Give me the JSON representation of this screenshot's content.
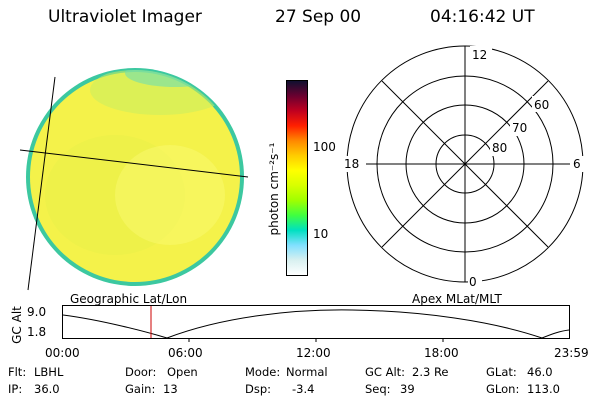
{
  "header": {
    "title": "Ultraviolet Imager",
    "date": "27 Sep 00",
    "time": "04:16:42 UT"
  },
  "colorbar": {
    "unit_label": "photon cm⁻²s⁻¹",
    "ticks": [
      "100",
      "10"
    ],
    "colors": [
      "#101030",
      "#6a0030",
      "#c00020",
      "#ff2000",
      "#ff8800",
      "#ffcc00",
      "#ffff00",
      "#d8ff00",
      "#a0ff00",
      "#40ff40",
      "#00e0c0",
      "#80e0ff",
      "#d8f0f0",
      "#ffffff"
    ]
  },
  "image": {
    "fill_color": "#f4f24a",
    "edge_color": "#3cc8a0"
  },
  "polar_grid": {
    "mlt_labels": [
      "12",
      "18",
      "6",
      "0"
    ],
    "lat_labels": [
      "60",
      "70",
      "80"
    ]
  },
  "panel_labels": {
    "left": "Geographic Lat/Lon",
    "right": "Apex MLat/MLT"
  },
  "altitude_plot": {
    "axis_label": "GC Alt",
    "y_ticks": [
      "9.0",
      "1.8"
    ],
    "x_ticks": [
      "00:00",
      "06:00",
      "12:00",
      "18:00",
      "23:59"
    ],
    "marker_color": "#cc0000"
  },
  "info": {
    "rows": [
      [
        {
          "label": "Flt:",
          "value": "LBHL"
        },
        {
          "label": "Door:",
          "value": "Open"
        },
        {
          "label": "Mode:",
          "value": "Normal"
        },
        {
          "label": "GC Alt:",
          "value": "2.3 Re"
        },
        {
          "label": "GLat:",
          "value": "46.0"
        }
      ],
      [
        {
          "label": "IP:",
          "value": "36.0"
        },
        {
          "label": "Gain:",
          "value": "13"
        },
        {
          "label": "Dsp:",
          "value": "-3.4"
        },
        {
          "label": "Seq:",
          "value": "39"
        },
        {
          "label": "GLon:",
          "value": "113.0"
        }
      ]
    ]
  }
}
